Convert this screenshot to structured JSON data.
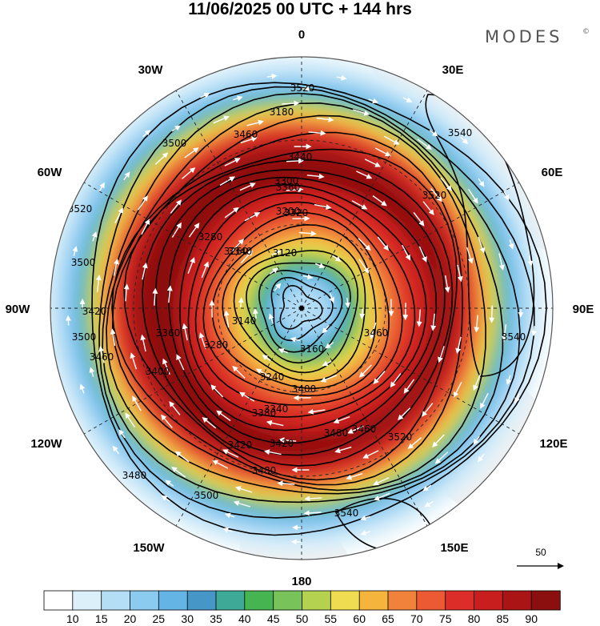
{
  "title": "11/06/2025  00 UTC  + 144 hrs",
  "logo": {
    "text": "MODES",
    "mark": "©"
  },
  "longitude_labels": [
    "0",
    "30E",
    "60E",
    "90E",
    "120E",
    "150E",
    "180",
    "150W",
    "120W",
    "90W",
    "60W",
    "30W"
  ],
  "contour_labels": [
    "3540",
    "3540",
    "3540",
    "3520",
    "3520",
    "3520",
    "3520",
    "3500",
    "3500",
    "3500",
    "3500",
    "3480",
    "3480",
    "3480",
    "3460",
    "3460",
    "3460",
    "3460",
    "3440",
    "3420",
    "3420",
    "3420",
    "3400",
    "3400",
    "3380",
    "3360",
    "3360",
    "3340",
    "3340",
    "3320",
    "3300",
    "3280",
    "3280",
    "3260",
    "3240",
    "3200",
    "3180",
    "3160",
    "3140",
    "3120"
  ],
  "vector_reference": {
    "value": "50"
  },
  "colorbar": {
    "ticks": [
      "10",
      "15",
      "20",
      "25",
      "30",
      "35",
      "40",
      "45",
      "50",
      "55",
      "60",
      "65",
      "70",
      "75",
      "80",
      "85",
      "90"
    ],
    "colors": [
      "#ffffff",
      "#dcf0fa",
      "#b4def6",
      "#8ccbf0",
      "#64b4e6",
      "#4696c8",
      "#3caa96",
      "#46b450",
      "#78c35a",
      "#b4d250",
      "#f0dc50",
      "#f5b43c",
      "#f0823c",
      "#eb5a32",
      "#dc2d28",
      "#c81e1e",
      "#aa1414",
      "#8c0f0f"
    ]
  },
  "legend_colors": {
    "land": "#f0f0f0",
    "contour": "#000000",
    "vector": "#ffffff"
  }
}
